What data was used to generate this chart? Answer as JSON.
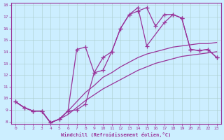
{
  "xlabel": "Windchill (Refroidissement éolien,°C)",
  "bg_color": "#cceeff",
  "line_color": "#993399",
  "grid_color": "#aacccc",
  "xlim": [
    -0.5,
    23.5
  ],
  "ylim": [
    7.8,
    18.2
  ],
  "xticks": [
    0,
    1,
    2,
    3,
    4,
    5,
    6,
    7,
    8,
    9,
    10,
    11,
    12,
    13,
    14,
    15,
    16,
    17,
    18,
    19,
    20,
    21,
    22,
    23
  ],
  "yticks": [
    8,
    9,
    10,
    11,
    12,
    13,
    14,
    15,
    16,
    17,
    18
  ],
  "lines": [
    {
      "x": [
        0,
        1,
        2,
        3,
        4,
        5,
        6,
        7,
        8,
        9,
        10,
        11,
        12,
        13,
        14,
        15,
        16,
        17,
        18,
        19,
        20,
        21,
        22,
        23
      ],
      "y": [
        9.7,
        9.2,
        8.9,
        8.9,
        7.9,
        8.2,
        8.6,
        9.2,
        9.8,
        10.3,
        10.8,
        11.2,
        11.6,
        12.0,
        12.4,
        12.7,
        13.0,
        13.2,
        13.4,
        13.6,
        13.7,
        13.8,
        13.9,
        14.0
      ],
      "marker": false,
      "linewidth": 0.9
    },
    {
      "x": [
        0,
        1,
        2,
        3,
        4,
        5,
        6,
        7,
        8,
        9,
        10,
        11,
        12,
        13,
        14,
        15,
        16,
        17,
        18,
        19,
        20,
        21,
        22,
        23
      ],
      "y": [
        9.7,
        9.2,
        8.9,
        8.9,
        7.9,
        8.2,
        8.9,
        9.7,
        10.5,
        11.1,
        11.8,
        12.2,
        12.7,
        13.1,
        13.5,
        13.8,
        14.0,
        14.2,
        14.4,
        14.5,
        14.6,
        14.7,
        14.7,
        14.8
      ],
      "marker": false,
      "linewidth": 0.9
    },
    {
      "x": [
        0,
        1,
        2,
        3,
        4,
        5,
        6,
        7,
        8,
        9,
        10,
        11,
        12,
        13,
        14,
        15,
        17,
        18,
        19,
        20,
        21,
        22,
        23
      ],
      "y": [
        9.7,
        9.2,
        8.9,
        8.9,
        7.9,
        8.2,
        8.9,
        14.2,
        14.4,
        12.2,
        12.4,
        14.0,
        16.0,
        17.2,
        17.8,
        14.5,
        16.5,
        17.2,
        16.9,
        14.2,
        14.1,
        14.2,
        13.5
      ],
      "marker": true,
      "linewidth": 0.9
    },
    {
      "x": [
        0,
        1,
        2,
        3,
        4,
        5,
        6,
        7,
        8,
        9,
        10,
        11,
        12,
        13,
        14,
        15,
        16,
        17,
        18,
        19,
        20,
        21,
        22,
        23
      ],
      "y": [
        9.7,
        9.2,
        8.9,
        8.9,
        7.9,
        8.2,
        8.9,
        9.0,
        9.5,
        12.2,
        13.5,
        14.0,
        16.0,
        17.2,
        17.5,
        17.8,
        16.2,
        17.2,
        17.2,
        16.9,
        14.2,
        14.1,
        14.2,
        13.5
      ],
      "marker": true,
      "linewidth": 0.9
    }
  ]
}
